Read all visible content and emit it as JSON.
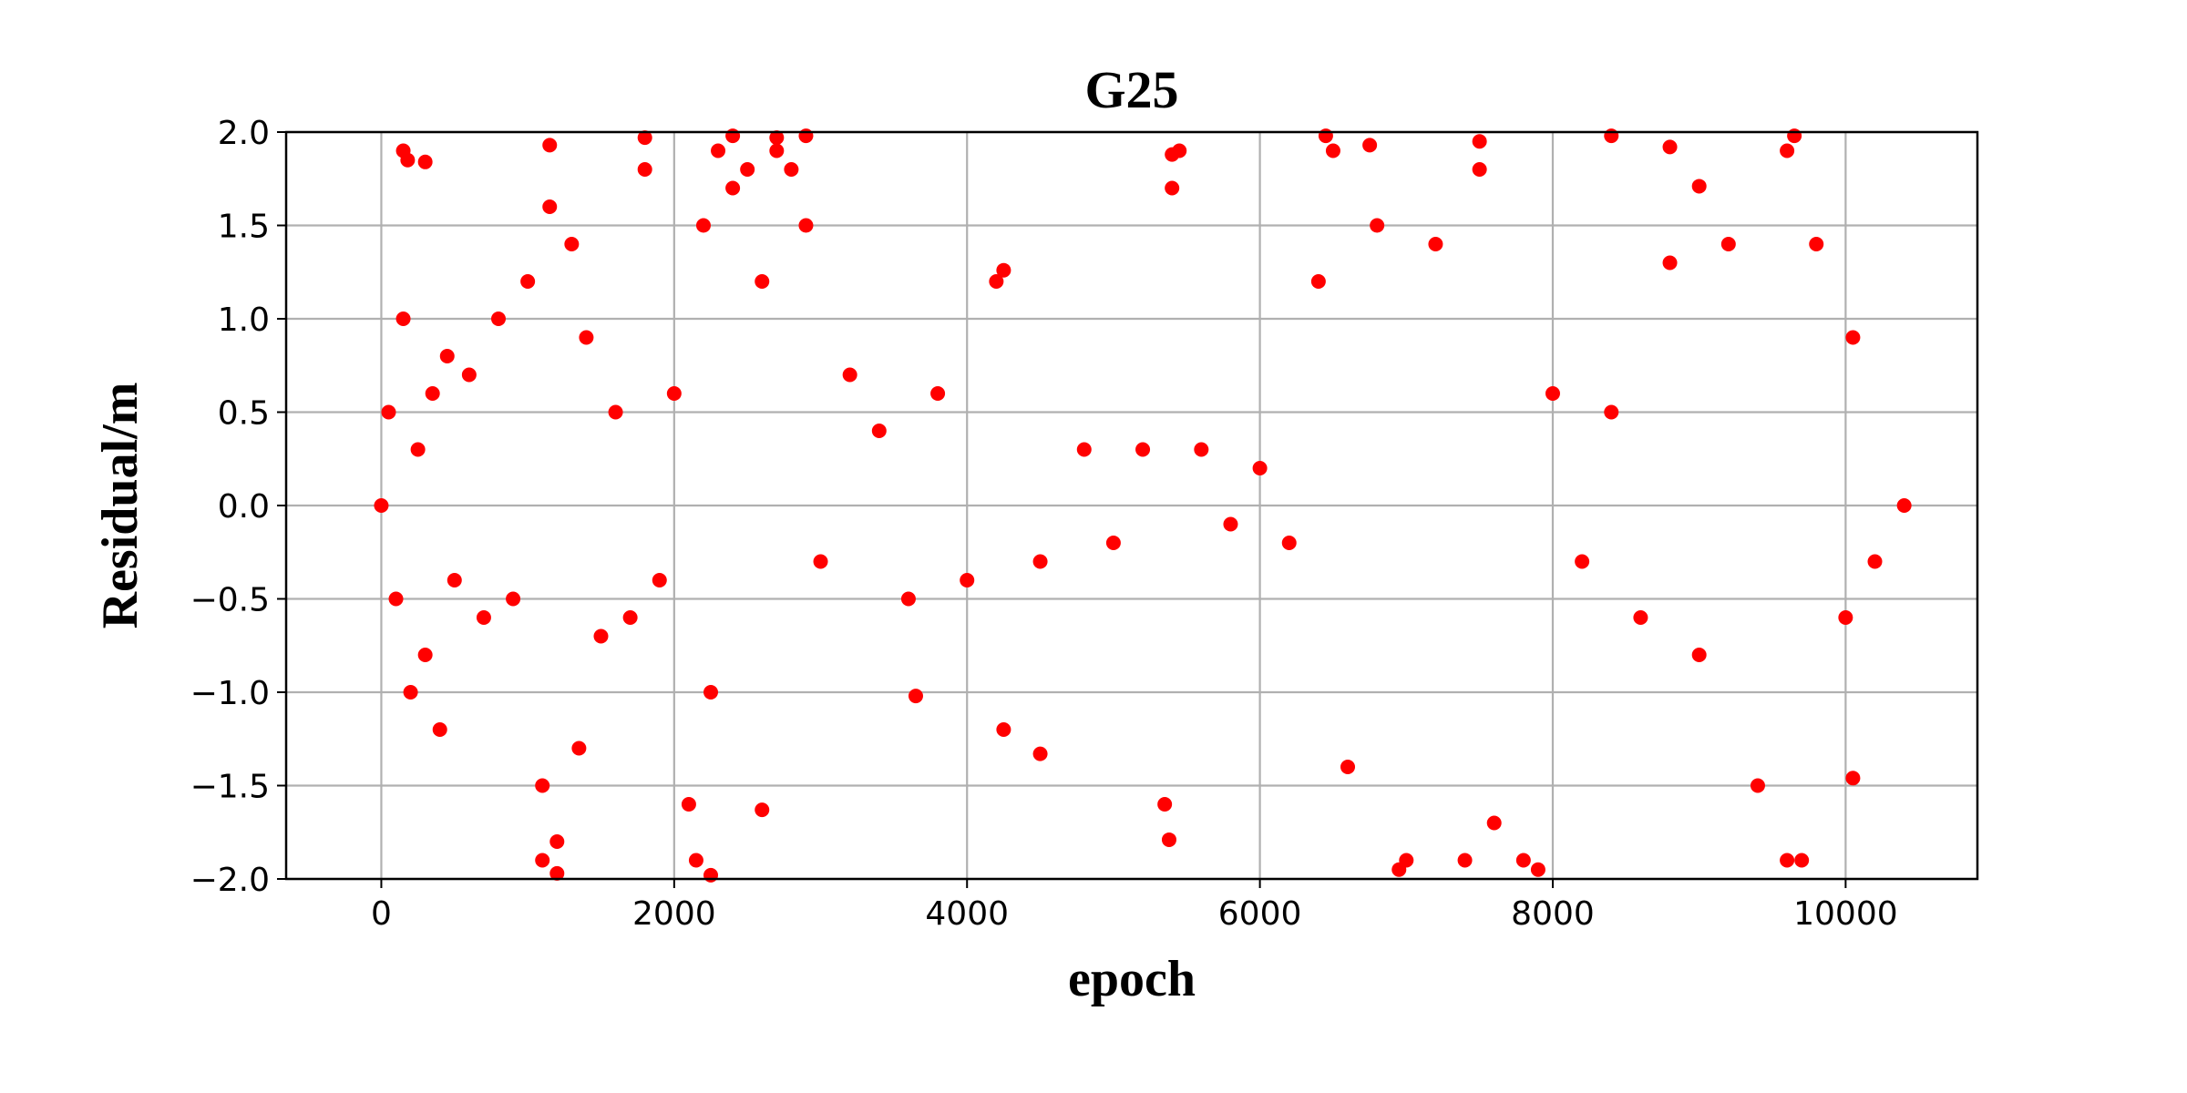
{
  "chart_data": {
    "type": "scatter",
    "title": "G25",
    "xlabel": "epoch",
    "ylabel": "Residual/m",
    "xlim": [
      -650,
      10900
    ],
    "ylim": [
      -2.0,
      2.0
    ],
    "x_ticks": [
      0,
      2000,
      4000,
      6000,
      8000,
      10000
    ],
    "y_ticks": [
      -2.0,
      -1.5,
      -1.0,
      -0.5,
      0.0,
      0.5,
      1.0,
      1.5,
      2.0
    ],
    "x_tick_labels": [
      "0",
      "2000",
      "4000",
      "6000",
      "8000",
      "10000"
    ],
    "y_tick_labels": [
      "−2.0",
      "−1.5",
      "−1.0",
      "−0.5",
      "0.0",
      "0.5",
      "1.0",
      "1.5",
      "2.0"
    ],
    "grid": true,
    "series": [
      {
        "color": "#ff0000",
        "marker": "circle",
        "x": [
          0,
          50,
          100,
          150,
          200,
          250,
          300,
          350,
          400,
          450,
          500,
          600,
          700,
          800,
          900,
          1000,
          1100,
          1150,
          1200,
          1300,
          1350,
          1400,
          1500,
          1600,
          1700,
          1800,
          1900,
          2000,
          2100,
          2150,
          2200,
          2250,
          2300,
          2400,
          2500,
          2600,
          2700,
          2800,
          2900,
          3000,
          3200,
          3400,
          3600,
          3800,
          4000,
          4200,
          4250,
          4500,
          4800,
          5000,
          5200,
          5350,
          5400,
          5450,
          5600,
          5800,
          6000,
          6200,
          6400,
          6500,
          6600,
          6800,
          7000,
          7200,
          7400,
          7500,
          7600,
          7800,
          8000,
          8200,
          8400,
          8600,
          8800,
          9000,
          9200,
          9400,
          9600,
          9700,
          9800,
          10000,
          10050,
          10200,
          10400,
          150,
          180,
          300,
          1150,
          1200,
          1800,
          2400,
          2700,
          2900,
          5400,
          6450,
          6750,
          6950,
          7500,
          7900,
          8400,
          8800,
          9650,
          3650,
          2250,
          9000,
          1100,
          4250,
          4500,
          5380,
          2600,
          9600,
          10050
        ],
        "y": [
          0.0,
          0.5,
          -0.5,
          1.0,
          -1.0,
          0.3,
          -0.8,
          0.6,
          -1.2,
          0.8,
          -0.4,
          0.7,
          -0.6,
          1.0,
          -0.5,
          1.2,
          -1.5,
          1.6,
          -1.8,
          1.4,
          -1.3,
          0.9,
          -0.7,
          0.5,
          -0.6,
          1.8,
          -0.4,
          0.6,
          -1.6,
          -1.9,
          1.5,
          -1.0,
          1.9,
          1.7,
          1.8,
          1.2,
          1.9,
          1.8,
          1.5,
          -0.3,
          0.7,
          0.4,
          -0.5,
          0.6,
          -0.4,
          1.2,
          -1.2,
          -0.3,
          0.3,
          -0.2,
          0.3,
          -1.6,
          1.7,
          1.9,
          0.3,
          -0.1,
          0.2,
          -0.2,
          1.2,
          1.9,
          -1.4,
          1.5,
          -1.9,
          1.4,
          -1.9,
          1.8,
          -1.7,
          -1.9,
          0.6,
          -0.3,
          0.5,
          -0.6,
          1.3,
          -0.8,
          1.4,
          -1.5,
          1.9,
          -1.9,
          1.4,
          -0.6,
          0.9,
          -0.3,
          0.0,
          1.9,
          1.85,
          1.84,
          1.93,
          -1.97,
          1.97,
          1.98,
          1.97,
          1.98,
          1.88,
          1.98,
          1.93,
          -1.95,
          1.95,
          -1.95,
          1.98,
          1.92,
          1.98,
          -1.02,
          -1.98,
          1.71,
          -1.9,
          1.26,
          -1.33,
          -1.79,
          -1.63,
          -1.9,
          -1.46
        ]
      }
    ]
  }
}
